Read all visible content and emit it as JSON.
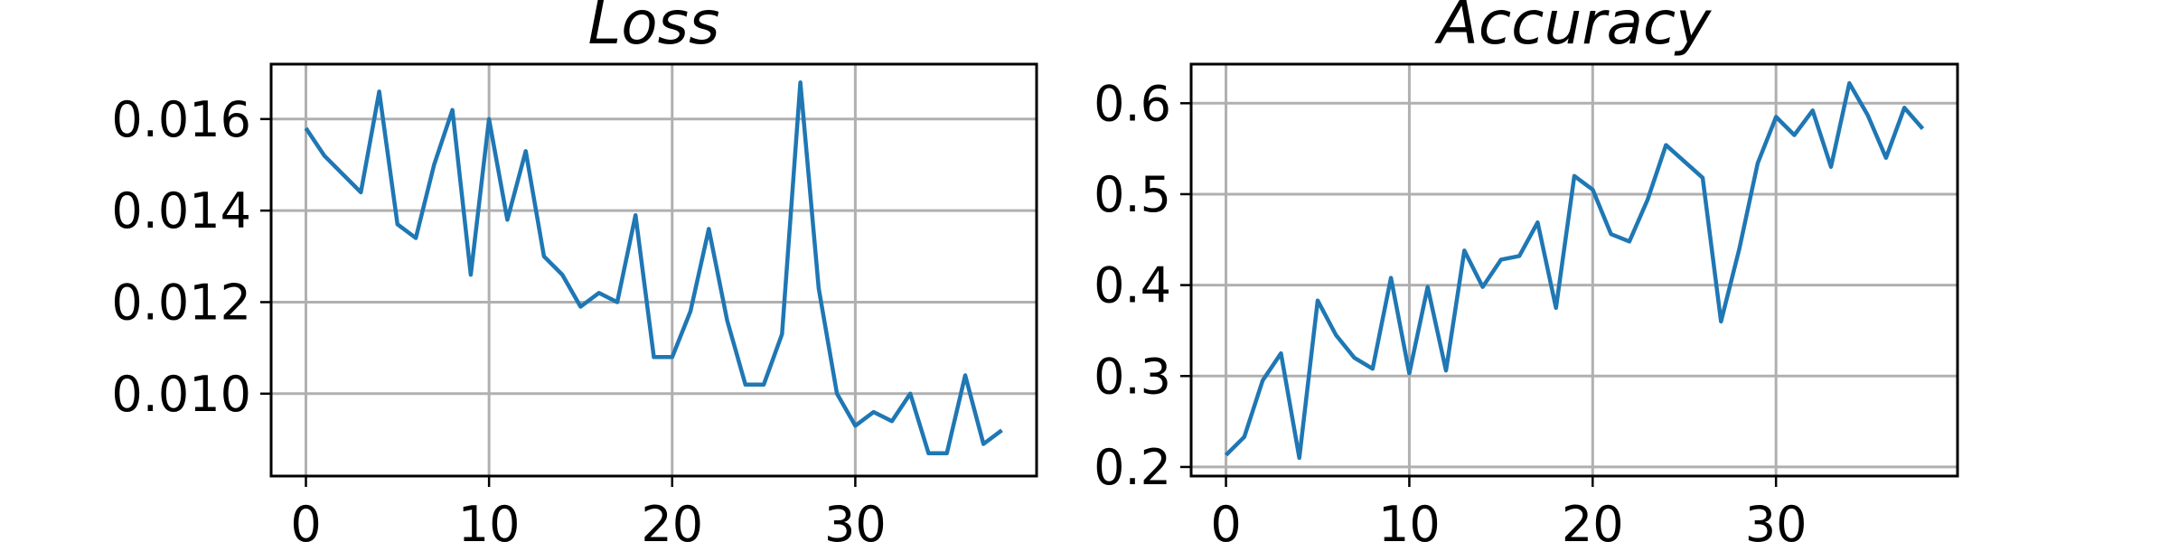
{
  "chart_data": [
    {
      "type": "line",
      "title": "Loss",
      "xlabel": "",
      "ylabel": "",
      "grid": true,
      "color": "#1f77b4",
      "xlim": [
        -1.9,
        39.9
      ],
      "ylim": [
        0.0082,
        0.0172
      ],
      "xticks": [
        0,
        10,
        20,
        30
      ],
      "yticks": [
        0.01,
        0.012,
        0.014,
        0.016
      ],
      "ytick_labels": [
        "0.010",
        "0.012",
        "0.014",
        "0.016"
      ],
      "series": [
        {
          "x": [
            0,
            1,
            2,
            3,
            4,
            5,
            6,
            7,
            8,
            9,
            10,
            11,
            12,
            13,
            14,
            15,
            16,
            17,
            18,
            19,
            20,
            21,
            22,
            23,
            24,
            25,
            26,
            27,
            28,
            29,
            30,
            31,
            32,
            33,
            34,
            35,
            36,
            37,
            38
          ],
          "values": [
            0.0158,
            0.0152,
            0.0148,
            0.0144,
            0.0166,
            0.0137,
            0.0134,
            0.015,
            0.0162,
            0.0126,
            0.016,
            0.0138,
            0.0153,
            0.013,
            0.0126,
            0.0119,
            0.0122,
            0.012,
            0.0139,
            0.0108,
            0.0108,
            0.0118,
            0.0136,
            0.0116,
            0.0102,
            0.0102,
            0.0113,
            0.0168,
            0.0123,
            0.01,
            0.0093,
            0.0096,
            0.0094,
            0.01,
            0.0087,
            0.0087,
            0.0104,
            0.0089,
            0.0092
          ]
        }
      ]
    },
    {
      "type": "line",
      "title": "Accuracy",
      "xlabel": "",
      "ylabel": "",
      "grid": true,
      "color": "#1f77b4",
      "xlim": [
        -1.9,
        39.9
      ],
      "ylim": [
        0.19,
        0.643
      ],
      "xticks": [
        0,
        10,
        20,
        30
      ],
      "yticks": [
        0.2,
        0.3,
        0.4,
        0.5,
        0.6
      ],
      "ytick_labels": [
        "0.2",
        "0.3",
        "0.4",
        "0.5",
        "0.6"
      ],
      "series": [
        {
          "x": [
            0,
            1,
            2,
            3,
            4,
            5,
            6,
            7,
            8,
            9,
            10,
            11,
            12,
            13,
            14,
            15,
            16,
            17,
            18,
            19,
            20,
            21,
            22,
            23,
            24,
            25,
            26,
            27,
            28,
            29,
            30,
            31,
            32,
            33,
            34,
            35,
            36,
            37,
            38
          ],
          "values": [
            0.213,
            0.233,
            0.295,
            0.325,
            0.21,
            0.383,
            0.345,
            0.32,
            0.308,
            0.408,
            0.303,
            0.398,
            0.306,
            0.438,
            0.398,
            0.428,
            0.432,
            0.469,
            0.375,
            0.52,
            0.505,
            0.456,
            0.448,
            0.494,
            0.554,
            0.536,
            0.518,
            0.36,
            0.44,
            0.534,
            0.585,
            0.565,
            0.592,
            0.53,
            0.622,
            0.587,
            0.54,
            0.595,
            0.572
          ]
        }
      ]
    }
  ]
}
